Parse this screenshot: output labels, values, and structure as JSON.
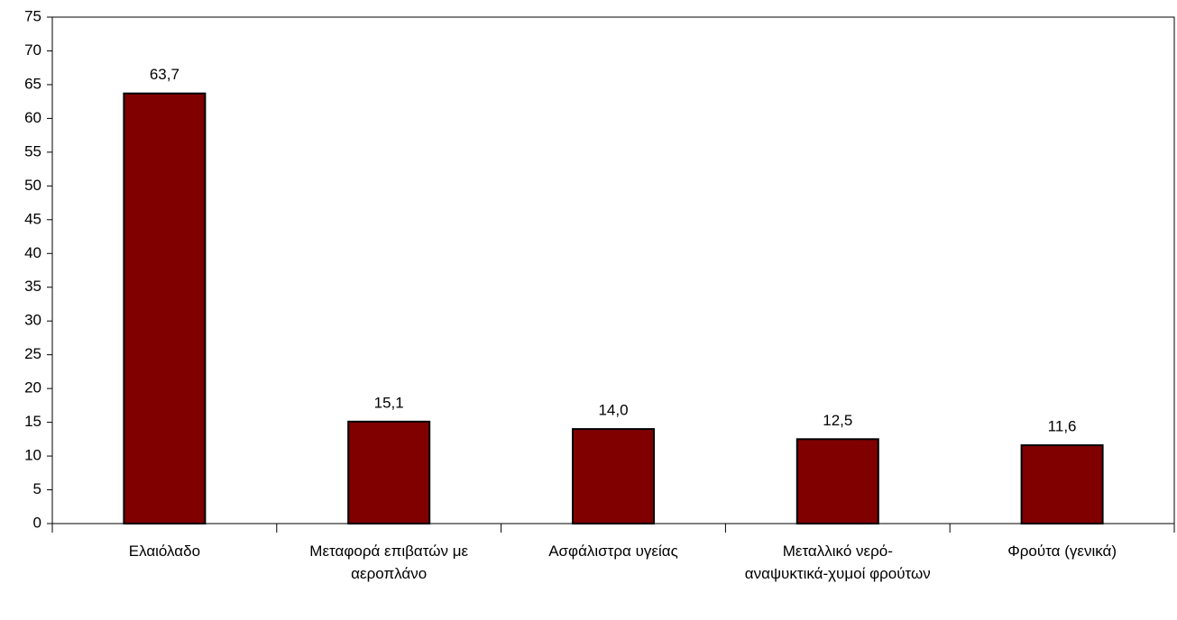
{
  "chart_data": {
    "type": "bar",
    "categories": [
      "Ελαιόλαδο",
      "Μεταφορά επιβατών με αεροπλάνο",
      "Ασφάλιστρα υγείας",
      "Μεταλλικό νερό-αναψυκτικά-χυμοί φρούτων",
      "Φρούτα (γενικά)"
    ],
    "values": [
      63.7,
      15.1,
      14.0,
      12.5,
      11.6
    ],
    "value_labels": [
      "63,7",
      "15,1",
      "14,0",
      "12,5",
      "11,6"
    ],
    "color": "#800000",
    "ylim": [
      0,
      75
    ],
    "yticks": [
      0,
      5,
      10,
      15,
      20,
      25,
      30,
      35,
      40,
      45,
      50,
      55,
      60,
      65,
      70,
      75
    ]
  }
}
